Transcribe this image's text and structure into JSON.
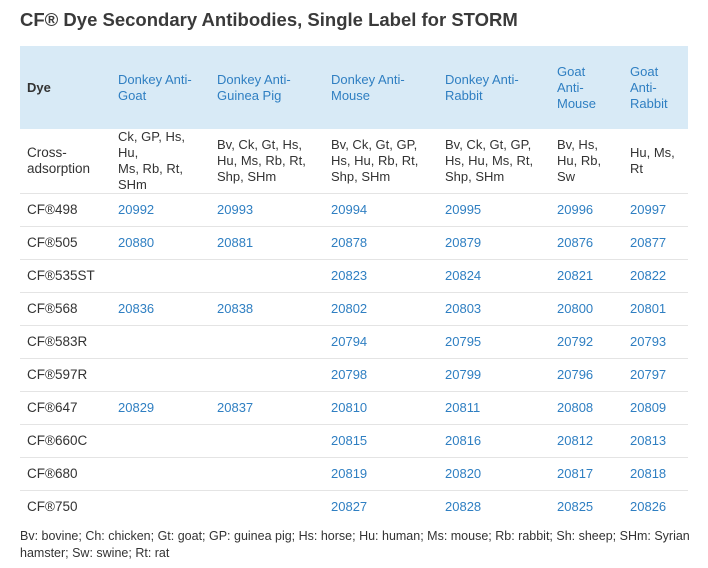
{
  "title": "CF® Dye Secondary Antibodies, Single Label for STORM",
  "table": {
    "headers": [
      "Dye",
      "Donkey Anti-\nGoat",
      "Donkey Anti-\nGuinea Pig",
      "Donkey Anti-\nMouse",
      "Donkey Anti-\nRabbit",
      "Goat\nAnti-\nMouse",
      "Goat\nAnti-\nRabbit"
    ],
    "cross_adsorption": [
      "Cross-\nadsorption",
      "Ck, GP, Hs, Hu,\nMs, Rb, Rt,\nSHm",
      "Bv, Ck, Gt, Hs,\nHu, Ms, Rb, Rt,\nShp, SHm",
      "Bv, Ck, Gt, GP,\nHs, Hu, Rb, Rt,\nShp, SHm",
      "Bv, Ck, Gt, GP,\nHs, Hu, Ms, Rt,\nShp, SHm",
      "Bv, Hs,\nHu, Rb,\nSw",
      "Hu, Ms,\nRt"
    ],
    "rows": [
      [
        "CF®498",
        "20992",
        "20993",
        "20994",
        "20995",
        "20996",
        "20997"
      ],
      [
        "CF®505",
        "20880",
        "20881",
        "20878",
        "20879",
        "20876",
        "20877"
      ],
      [
        "CF®535ST",
        "",
        "",
        "20823",
        "20824",
        "20821",
        "20822"
      ],
      [
        "CF®568",
        "20836",
        "20838",
        "20802",
        "20803",
        "20800",
        "20801"
      ],
      [
        "CF®583R",
        "",
        "",
        "20794",
        "20795",
        "20792",
        "20793"
      ],
      [
        "CF®597R",
        "",
        "",
        "20798",
        "20799",
        "20796",
        "20797"
      ],
      [
        "CF®647",
        "20829",
        "20837",
        "20810",
        "20811",
        "20808",
        "20809"
      ],
      [
        "CF®660C",
        "",
        "",
        "20815",
        "20816",
        "20812",
        "20813"
      ],
      [
        "CF®680",
        "",
        "",
        "20819",
        "20820",
        "20817",
        "20818"
      ],
      [
        "CF®750",
        "",
        "",
        "20827",
        "20828",
        "20825",
        "20826"
      ]
    ]
  },
  "footnote": "Bv: bovine; Ch: chicken; Gt: goat; GP: guinea pig; Hs: horse; Hu: human; Ms: mouse; Rb: rabbit; Sh: sheep; SHm: Syrian hamster; Sw: swine; Rt: rat",
  "colors": {
    "header_bg": "#d8eaf6",
    "link_blue": "#2f7fc2",
    "text": "#333333"
  }
}
